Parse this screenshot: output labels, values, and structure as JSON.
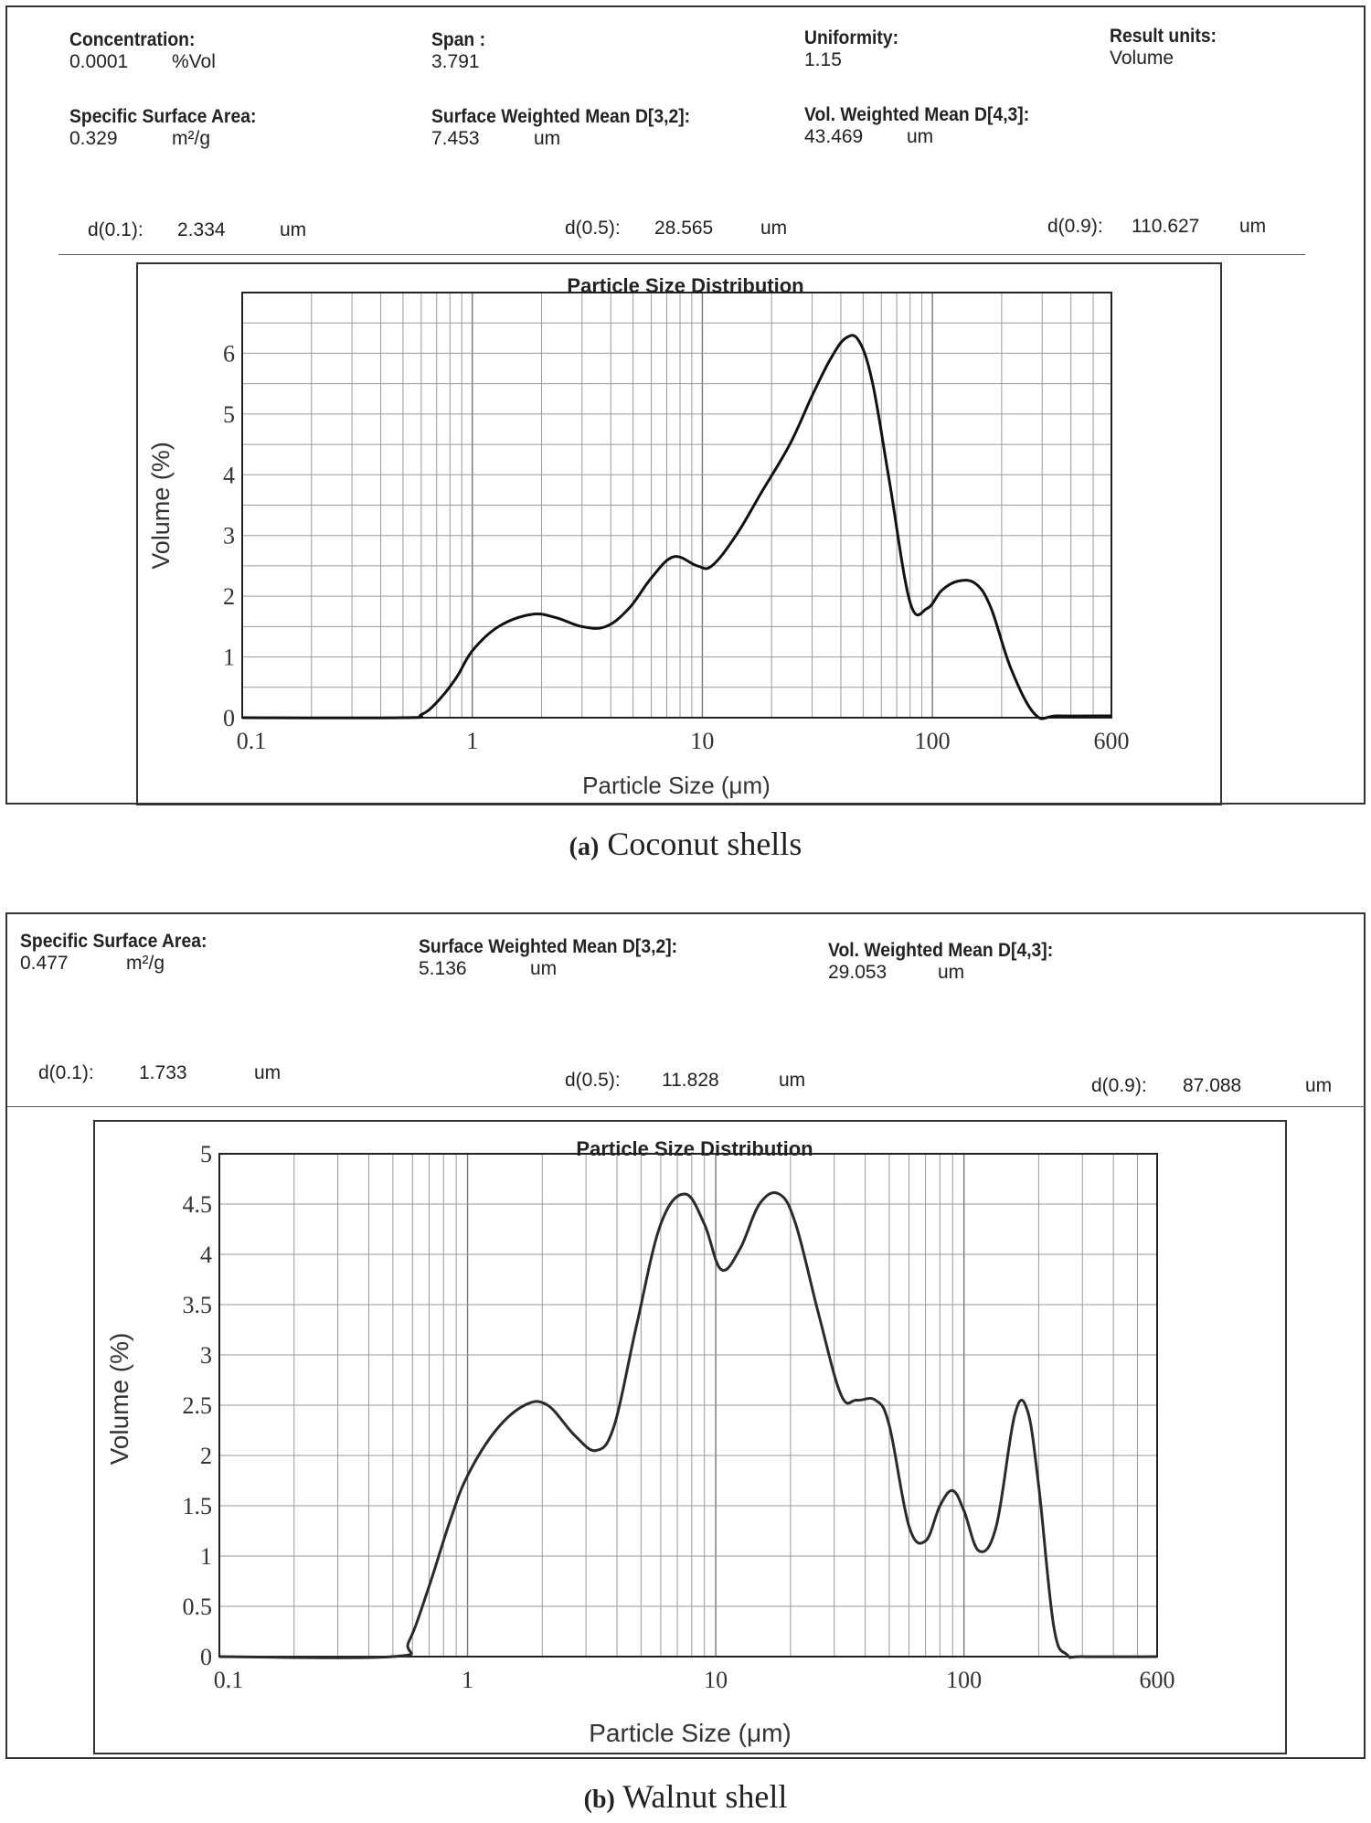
{
  "panel_a": {
    "stats_top": [
      {
        "label": "Concentration:",
        "value": "0.0001",
        "unit": "%Vol"
      },
      {
        "label": "Span :",
        "value": "3.791",
        "unit": ""
      },
      {
        "label": "Uniformity:",
        "value": "1.15",
        "unit": ""
      },
      {
        "label": "Result units:",
        "value": "Volume",
        "unit": ""
      }
    ],
    "stats_mid": [
      {
        "label": "Specific Surface Area:",
        "value": "0.329",
        "unit": "m²/g"
      },
      {
        "label": "Surface Weighted Mean D[3,2]:",
        "value": "7.453",
        "unit": "um"
      },
      {
        "label": "Vol. Weighted Mean D[4,3]:",
        "value": "43.469",
        "unit": "um"
      }
    ],
    "d_values": [
      {
        "label": "d(0.1):",
        "value": "2.334",
        "unit": "um"
      },
      {
        "label": "d(0.5):",
        "value": "28.565",
        "unit": "um"
      },
      {
        "label": "d(0.9):",
        "value": "110.627",
        "unit": "um"
      }
    ],
    "caption_tag": "(a)",
    "caption_text": "Coconut shells"
  },
  "panel_b": {
    "stats_mid": [
      {
        "label": "Specific Surface Area:",
        "value": "0.477",
        "unit": "m²/g"
      },
      {
        "label": "Surface Weighted Mean D[3,2]:",
        "value": "5.136",
        "unit": "um"
      },
      {
        "label": "Vol. Weighted Mean D[4,3]:",
        "value": "29.053",
        "unit": "um"
      }
    ],
    "d_values": [
      {
        "label": "d(0.1):",
        "value": "1.733",
        "unit": "um"
      },
      {
        "label": "d(0.5):",
        "value": "11.828",
        "unit": "um"
      },
      {
        "label": "d(0.9):",
        "value": "87.088",
        "unit": "um"
      }
    ],
    "caption_tag": "(b)",
    "caption_text": "Walnut shell"
  },
  "chart_data": [
    {
      "type": "line",
      "title": "Particle Size Distribution",
      "xlabel": "Particle Size (μm)",
      "ylabel": "Volume (%)",
      "xscale": "log",
      "xlim": [
        0.1,
        600
      ],
      "ylim": [
        0,
        7
      ],
      "xticks": [
        0.1,
        1,
        10,
        100,
        600
      ],
      "xtick_labels": [
        "0.1",
        "1",
        "10",
        "100",
        "600"
      ],
      "yticks": [
        0,
        1,
        2,
        3,
        4,
        5,
        6
      ],
      "ytick_labels": [
        "0",
        "1",
        "2",
        "3",
        "4",
        "5",
        "6"
      ],
      "grid": true,
      "series": [
        {
          "name": "Coconut shells",
          "x": [
            0.1,
            0.5,
            0.6,
            0.7,
            0.85,
            1.0,
            1.3,
            1.8,
            2.3,
            3.0,
            3.8,
            4.8,
            6.0,
            7.5,
            9.5,
            11,
            14,
            18,
            24,
            30,
            36,
            42,
            48,
            55,
            65,
            80,
            95,
            110,
            130,
            155,
            180,
            220,
            280,
            350,
            600
          ],
          "y": [
            0,
            0,
            0.05,
            0.25,
            0.65,
            1.1,
            1.5,
            1.7,
            1.65,
            1.5,
            1.5,
            1.8,
            2.3,
            2.65,
            2.5,
            2.5,
            3.0,
            3.7,
            4.5,
            5.3,
            5.9,
            6.25,
            6.2,
            5.5,
            3.9,
            1.9,
            1.8,
            2.1,
            2.25,
            2.2,
            1.8,
            0.8,
            0.05,
            0.03,
            0.03
          ]
        }
      ]
    },
    {
      "type": "line",
      "title": "Particle Size Distribution",
      "xlabel": "Particle Size (μm)",
      "ylabel": "Volume (%)",
      "xscale": "log",
      "xlim": [
        0.1,
        600
      ],
      "ylim": [
        0,
        5
      ],
      "xticks": [
        0.1,
        1,
        10,
        100,
        600
      ],
      "xtick_labels": [
        "0.1",
        "1",
        "10",
        "100",
        "600"
      ],
      "yticks": [
        0,
        0.5,
        1,
        1.5,
        2,
        2.5,
        3,
        3.5,
        4,
        4.5,
        5
      ],
      "ytick_labels": [
        "0",
        "0.5",
        "1",
        "1.5",
        "2",
        "2.5",
        "3",
        "3.5",
        "4",
        "4.5",
        "5"
      ],
      "grid": true,
      "series": [
        {
          "name": "Walnut shell",
          "x": [
            0.1,
            0.5,
            0.58,
            0.7,
            0.85,
            1.0,
            1.3,
            1.7,
            2.1,
            2.7,
            3.3,
            3.9,
            4.8,
            6.0,
            7.5,
            9.0,
            10.5,
            12.5,
            15,
            18,
            21,
            26,
            32,
            37,
            44,
            50,
            60,
            70,
            80,
            90,
            100,
            115,
            135,
            160,
            180,
            200,
            230,
            260,
            300,
            600
          ],
          "y": [
            0,
            0,
            0.15,
            0.7,
            1.35,
            1.8,
            2.25,
            2.5,
            2.5,
            2.2,
            2.05,
            2.3,
            3.3,
            4.3,
            4.6,
            4.3,
            3.85,
            4.05,
            4.5,
            4.6,
            4.3,
            3.4,
            2.6,
            2.55,
            2.55,
            2.3,
            1.3,
            1.15,
            1.5,
            1.65,
            1.45,
            1.05,
            1.3,
            2.4,
            2.45,
            1.7,
            0.3,
            0.02,
            0,
            0
          ]
        }
      ]
    }
  ]
}
